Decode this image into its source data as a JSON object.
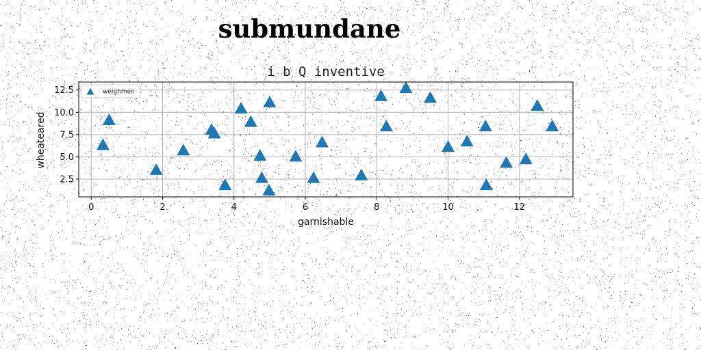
{
  "figure": {
    "title": "submundane"
  },
  "colors": {
    "marker": "#1f77b4",
    "grid": "#b0b0b0",
    "frame": "#000000"
  },
  "chart_data": {
    "type": "scatter",
    "title": "i b Q inventive",
    "xlabel": "garnishable",
    "ylabel": "wheateared",
    "xlim": [
      -0.35,
      13.5
    ],
    "ylim": [
      0.5,
      13.4
    ],
    "xticks": [
      0,
      2,
      4,
      6,
      8,
      10,
      12
    ],
    "yticks": [
      2.5,
      5.0,
      7.5,
      10.0,
      12.5
    ],
    "xtick_labels": [
      "0",
      "2",
      "4",
      "6",
      "8",
      "10",
      "12"
    ],
    "ytick_labels": [
      "2.5",
      "5.0",
      "7.5",
      "10.0",
      "12.5"
    ],
    "grid": true,
    "legend_position": "top-left",
    "marker": "triangle-up",
    "series": [
      {
        "name": "weighmen",
        "points": [
          [
            0.33,
            6.3
          ],
          [
            0.5,
            9.1
          ],
          [
            1.82,
            3.5
          ],
          [
            2.58,
            5.7
          ],
          [
            3.37,
            8.0
          ],
          [
            3.45,
            7.6
          ],
          [
            3.75,
            1.8
          ],
          [
            4.2,
            10.4
          ],
          [
            4.47,
            8.9
          ],
          [
            4.73,
            5.1
          ],
          [
            4.78,
            2.6
          ],
          [
            4.98,
            1.2
          ],
          [
            5.0,
            11.1
          ],
          [
            5.73,
            5.0
          ],
          [
            6.23,
            2.6
          ],
          [
            6.47,
            6.6
          ],
          [
            7.57,
            2.9
          ],
          [
            8.12,
            11.8
          ],
          [
            8.27,
            8.4
          ],
          [
            8.82,
            12.7
          ],
          [
            9.5,
            11.6
          ],
          [
            10.0,
            6.1
          ],
          [
            10.53,
            6.7
          ],
          [
            11.05,
            8.4
          ],
          [
            11.07,
            1.8
          ],
          [
            11.63,
            4.3
          ],
          [
            12.18,
            4.7
          ],
          [
            12.5,
            10.7
          ],
          [
            12.92,
            8.4
          ]
        ]
      }
    ]
  }
}
